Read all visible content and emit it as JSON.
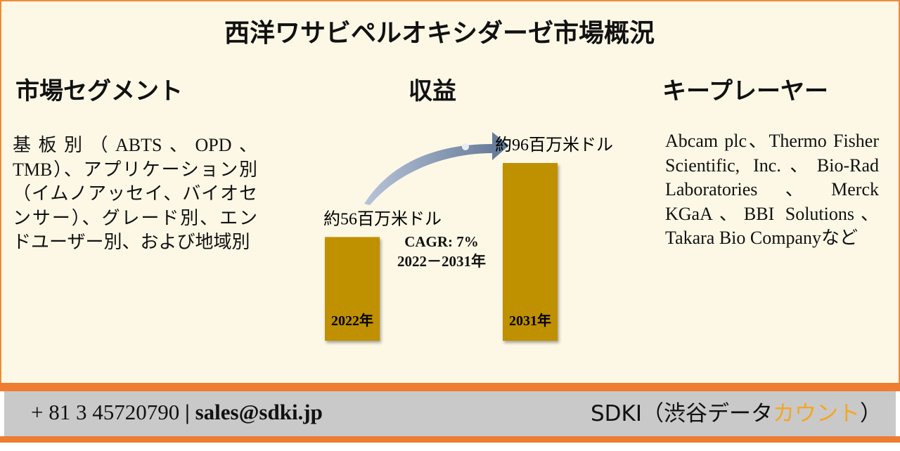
{
  "title": "西洋ワサビペルオキシダーゼ市場概況",
  "segments": {
    "heading": "市場セグメント",
    "text": "基板別（ABTS、OPD、TMB）、アプリケーション別（イムノアッセイ、バイオセンサー）、グレード別、エンドユーザー別、および地域別"
  },
  "revenue": {
    "heading": "収益",
    "cagr": "CAGR: 7%",
    "period": "2022－2031年",
    "chart_data": {
      "type": "bar",
      "categories": [
        "2022年",
        "2031年"
      ],
      "values": [
        56,
        96
      ],
      "value_labels": [
        "約56百万米ドル",
        "約96百万米ドル"
      ],
      "color": "#bf9000"
    }
  },
  "players": {
    "heading": "キープレーヤー",
    "text": "Abcam plc、Thermo Fisher Scientific, Inc.、Bio-Rad Laboratories、Merck KGaA、BBI Solutions、Takara Bio Companyなど"
  },
  "footer": {
    "phone": "+ 81 3 45720790",
    "separator": "|",
    "email": "sales@sdki.jp",
    "brand": "SDKI（渋谷データ",
    "brand_highlight": "カウント",
    "brand_end": "）"
  }
}
